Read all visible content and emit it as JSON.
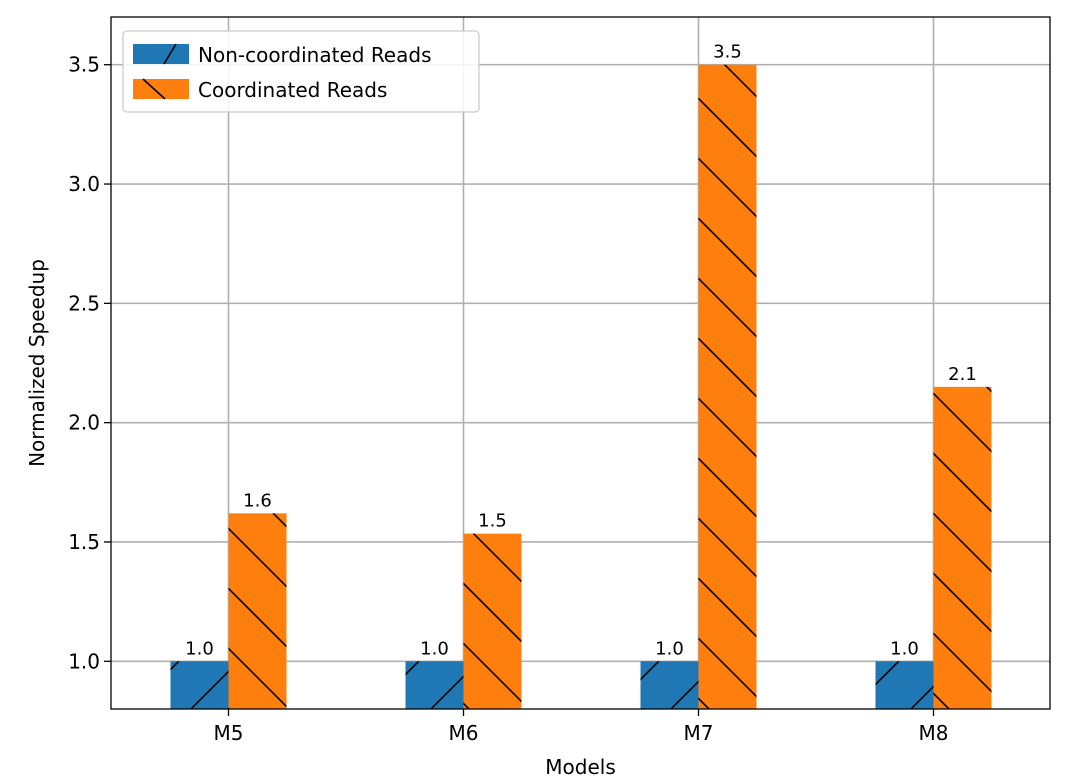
{
  "chart_data": {
    "type": "bar",
    "xlabel": "Models",
    "ylabel": "Normalized Speedup",
    "categories": [
      "M5",
      "M6",
      "M7",
      "M8"
    ],
    "series": [
      {
        "name": "Non-coordinated Reads",
        "values": [
          1.0,
          1.0,
          1.0,
          1.0
        ],
        "labels": [
          "1.0",
          "1.0",
          "1.0",
          "1.0"
        ],
        "color": "#1f77b4",
        "hatch": "forward-slash"
      },
      {
        "name": "Coordinated Reads",
        "values": [
          1.62,
          1.535,
          3.5,
          2.15
        ],
        "labels": [
          "1.6",
          "1.5",
          "3.5",
          "2.1"
        ],
        "color": "#ff7f0e",
        "hatch": "back-slash"
      }
    ],
    "ylim": [
      0.8,
      3.7
    ],
    "yticks": [
      1.0,
      1.5,
      2.0,
      2.5,
      3.0,
      3.5
    ],
    "ytick_labels": [
      "1.0",
      "1.5",
      "2.0",
      "2.5",
      "3.0",
      "3.5"
    ],
    "grid": true,
    "legend_position": "top-left"
  }
}
